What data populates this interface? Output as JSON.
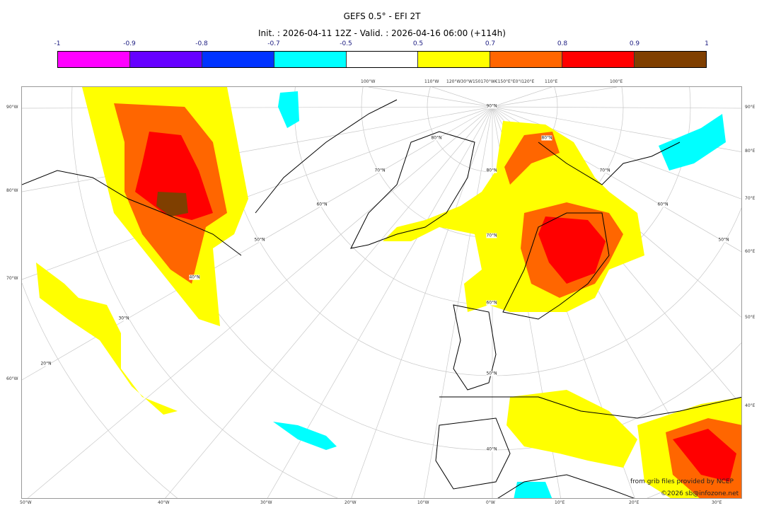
{
  "title": "GEFS 0.5° - EFI 2T",
  "subtitle": "Init. : 2026-04-11 12Z - Valid. : 2026-04-16 06:00 (+114h)",
  "colorbar": {
    "ticks": [
      "-1",
      "-0.9",
      "-0.8",
      "-0.7",
      "-0.5",
      "0.5",
      "0.7",
      "0.8",
      "0.9",
      "1"
    ],
    "colors": [
      "#ff00ff",
      "#6600ff",
      "#0033ff",
      "#00ffff",
      "#ffffff",
      "#ffff00",
      "#ff6600",
      "#ff0000",
      "#7f3f00"
    ]
  },
  "axes": {
    "left": [
      "90°W",
      "80°W",
      "70°W",
      "60°W"
    ],
    "right": [
      "90°E",
      "80°E",
      "70°E",
      "60°E",
      "50°E",
      "40°E"
    ],
    "bottom": [
      "50°W",
      "40°W",
      "30°W",
      "20°W",
      "10°W",
      "0°W",
      "10°E",
      "20°E",
      "30°E"
    ],
    "top": [
      "100°W",
      "110°W",
      "120°W30°W150170°W€150°E°E0°I120°E",
      "110°E",
      "100°E"
    ]
  },
  "grid_labels": [
    "90°N",
    "80°N",
    "80°N",
    "80°N",
    "70°N",
    "70°N",
    "70°N",
    "60°N",
    "60°N",
    "60°N",
    "50°N",
    "50°N",
    "50°N",
    "40°N",
    "40°N",
    "30°N",
    "20°N"
  ],
  "credits": {
    "line1": "from grib files provided by NCEP",
    "line2": "©2026 sb@infozone.net"
  }
}
